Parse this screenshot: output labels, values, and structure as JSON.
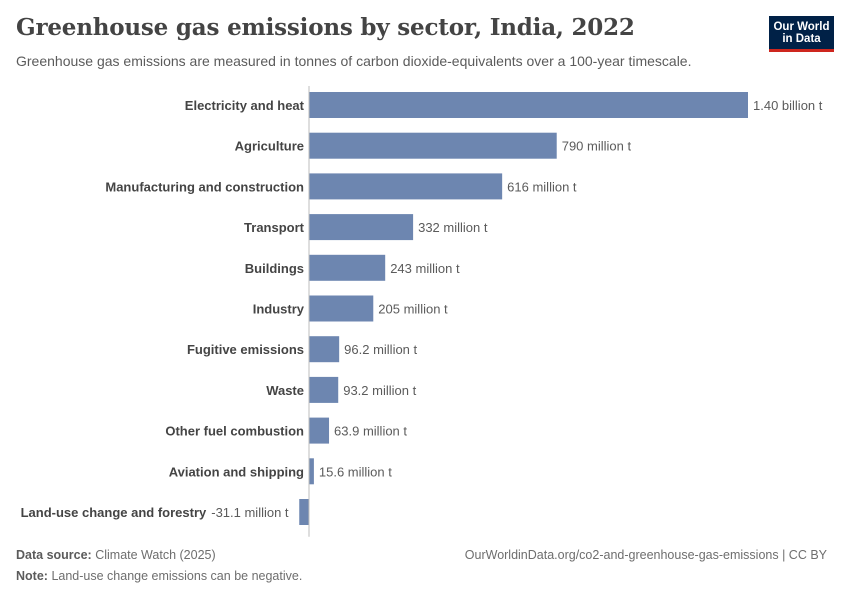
{
  "header": {
    "title": "Greenhouse gas emissions by sector, India, 2022",
    "subtitle": "Greenhouse gas emissions are measured in tonnes of carbon dioxide-equivalents over a 100-year timescale.",
    "logo_line1": "Our World",
    "logo_line2": "in Data"
  },
  "footer": {
    "source_label": "Data source:",
    "source_value": "Climate Watch (2025)",
    "note_label": "Note:",
    "note_value": "Land-use change emissions can be negative.",
    "credit": "OurWorldinData.org/co2-and-greenhouse-gas-emissions | CC BY"
  },
  "colors": {
    "bar": "#6d86b0",
    "axis": "#bdbdbd",
    "label": "#444444",
    "value_label": "#5b5b5b"
  },
  "chart_data": {
    "type": "bar",
    "orientation": "horizontal",
    "title": "Greenhouse gas emissions by sector, India, 2022",
    "unit": "tonnes of CO2-equivalents",
    "categories": [
      "Electricity and heat",
      "Agriculture",
      "Manufacturing and construction",
      "Transport",
      "Buildings",
      "Industry",
      "Fugitive emissions",
      "Waste",
      "Other fuel combustion",
      "Aviation and shipping",
      "Land-use change and forestry"
    ],
    "values": [
      1400000000,
      790000000,
      616000000,
      332000000,
      243000000,
      205000000,
      96200000,
      93200000,
      63900000,
      15600000,
      -31100000
    ],
    "value_labels": [
      "1.40 billion t",
      "790 million t",
      "616 million t",
      "332 million t",
      "243 million t",
      "205 million t",
      "96.2 million t",
      "93.2 million t",
      "63.9 million t",
      "15.6 million t",
      "-31.1 million t"
    ],
    "xlim": [
      -31100000,
      1400000000
    ],
    "grid": false
  }
}
